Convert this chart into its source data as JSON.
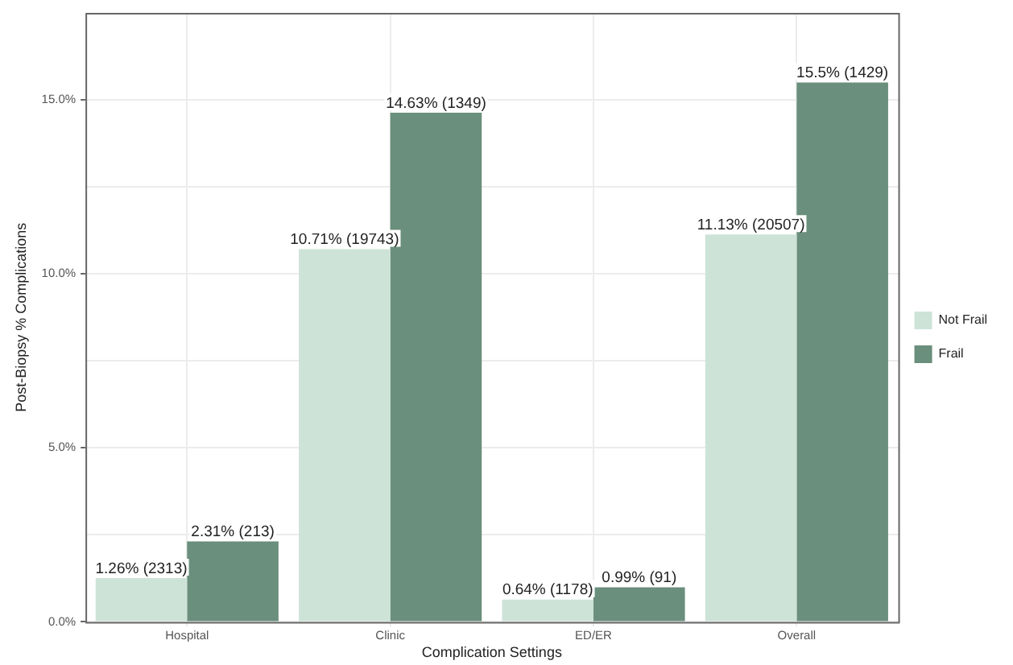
{
  "chart_data": {
    "type": "bar",
    "xlabel": "Complication Settings",
    "ylabel": "Post-Biopsy % Complications",
    "categories": [
      "Hospital",
      "Clinic",
      "ED/ER",
      "Overall"
    ],
    "series": [
      {
        "name": "Not Frail",
        "color": "#cde3d8",
        "values": [
          1.26,
          10.71,
          0.64,
          11.13
        ],
        "value_labels": [
          "1.26% (2313)",
          "10.71% (19743)",
          "0.64% (1178)",
          "11.13% (20507)"
        ]
      },
      {
        "name": "Frail",
        "color": "#6a8f7c",
        "values": [
          2.31,
          14.63,
          0.99,
          15.5
        ],
        "value_labels": [
          "2.31% (213)",
          "14.63% (1349)",
          "0.99% (91)",
          "15.5% (1429)"
        ]
      }
    ],
    "ylim": [
      0,
      17.5
    ],
    "yticks": [
      {
        "value": 0,
        "label": "0.0%"
      },
      {
        "value": 2.5,
        "label": null
      },
      {
        "value": 5,
        "label": "5.0%"
      },
      {
        "value": 7.5,
        "label": null
      },
      {
        "value": 10,
        "label": "10.0%"
      },
      {
        "value": 12.5,
        "label": null
      },
      {
        "value": 15,
        "label": "15.0%"
      }
    ],
    "grid": true,
    "legend": "right"
  }
}
